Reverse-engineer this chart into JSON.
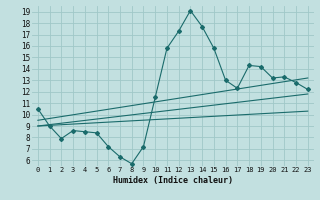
{
  "xlabel": "Humidex (Indice chaleur)",
  "ylabel": "",
  "bg_color": "#c2e0e0",
  "grid_color": "#a0c8c8",
  "line_color": "#1a6b6b",
  "xlim": [
    -0.5,
    23.5
  ],
  "ylim": [
    5.5,
    19.5
  ],
  "xticks": [
    0,
    1,
    2,
    3,
    4,
    5,
    6,
    7,
    8,
    9,
    10,
    11,
    12,
    13,
    14,
    15,
    16,
    17,
    18,
    19,
    20,
    21,
    22,
    23
  ],
  "yticks": [
    6,
    7,
    8,
    9,
    10,
    11,
    12,
    13,
    14,
    15,
    16,
    17,
    18,
    19
  ],
  "main_x": [
    0,
    1,
    2,
    3,
    4,
    5,
    6,
    7,
    8,
    9,
    10,
    11,
    12,
    13,
    14,
    15,
    16,
    17,
    18,
    19,
    20,
    21,
    22,
    23
  ],
  "main_y": [
    10.5,
    9.0,
    7.9,
    8.6,
    8.5,
    8.4,
    7.2,
    6.3,
    5.7,
    7.2,
    11.5,
    15.8,
    17.3,
    19.1,
    17.7,
    15.8,
    13.0,
    12.3,
    14.3,
    14.2,
    13.2,
    13.3,
    12.8,
    12.2
  ],
  "trend1_x": [
    0,
    23
  ],
  "trend1_y": [
    9.0,
    11.8
  ],
  "trend2_x": [
    0,
    23
  ],
  "trend2_y": [
    9.0,
    10.3
  ],
  "trend3_x": [
    0,
    23
  ],
  "trend3_y": [
    9.5,
    13.2
  ]
}
